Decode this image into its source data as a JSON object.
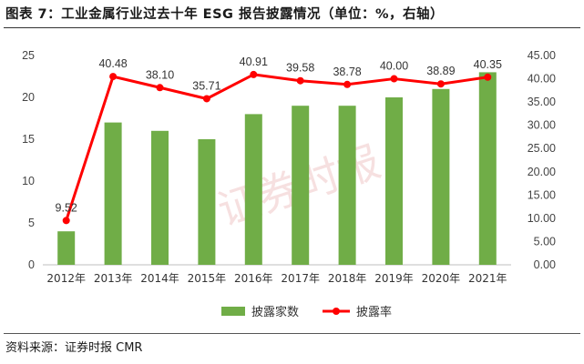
{
  "header": {
    "title": "图表 7：工业金属行业过去十年 ESG 报告披露情况（单位：%，右轴）"
  },
  "footer": {
    "source": "资料来源：证券时报 CMR"
  },
  "watermark": {
    "text": "证券时报"
  },
  "colors": {
    "bar": "#70ad47",
    "line": "#ff0000",
    "axis": "#bfbfbf",
    "text": "#333333"
  },
  "chart_data": {
    "type": "bar",
    "title": "工业金属行业过去十年 ESG 报告披露情况",
    "categories": [
      "2012年",
      "2013年",
      "2014年",
      "2015年",
      "2016年",
      "2017年",
      "2018年",
      "2019年",
      "2020年",
      "2021年"
    ],
    "series": [
      {
        "name": "披露家数",
        "type": "bar",
        "axis": "left",
        "values": [
          4,
          17,
          16,
          15,
          18,
          19,
          19,
          20,
          21,
          23
        ]
      },
      {
        "name": "披露率",
        "type": "line",
        "axis": "right",
        "values": [
          9.52,
          40.48,
          38.1,
          35.71,
          40.91,
          39.58,
          38.78,
          40.0,
          38.89,
          40.35
        ],
        "labels": [
          "9.52",
          "40.48",
          "38.10",
          "35.71",
          "40.91",
          "39.58",
          "38.78",
          "40.00",
          "38.89",
          "40.35"
        ]
      }
    ],
    "y_left": {
      "min": 0,
      "max": 25,
      "ticks": [
        "0",
        "5",
        "10",
        "15",
        "20",
        "25"
      ]
    },
    "y_right": {
      "min": 0,
      "max": 45,
      "ticks": [
        "0.00",
        "5.00",
        "10.00",
        "15.00",
        "20.00",
        "25.00",
        "30.00",
        "35.00",
        "40.00",
        "45.00"
      ]
    },
    "legend": {
      "position": "bottom-center",
      "items": [
        "披露家数",
        "披露率"
      ]
    },
    "grid": false
  }
}
